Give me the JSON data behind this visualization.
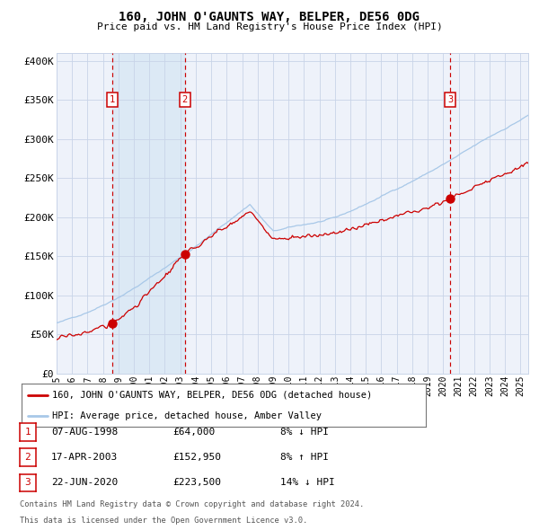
{
  "title": "160, JOHN O'GAUNTS WAY, BELPER, DE56 0DG",
  "subtitle": "Price paid vs. HM Land Registry's House Price Index (HPI)",
  "legend_line1": "160, JOHN O'GAUNTS WAY, BELPER, DE56 0DG (detached house)",
  "legend_line2": "HPI: Average price, detached house, Amber Valley",
  "footer1": "Contains HM Land Registry data © Crown copyright and database right 2024.",
  "footer2": "This data is licensed under the Open Government Licence v3.0.",
  "sales": [
    {
      "num": 1,
      "date": "07-AUG-1998",
      "price": 64000,
      "pct": "8%",
      "dir": "↓",
      "year": 1998.62
    },
    {
      "num": 2,
      "date": "17-APR-2003",
      "price": 152950,
      "pct": "8%",
      "dir": "↑",
      "year": 2003.29
    },
    {
      "num": 3,
      "date": "22-JUN-2020",
      "price": 223500,
      "pct": "14%",
      "dir": "↓",
      "year": 2020.47
    }
  ],
  "ylim": [
    0,
    410000
  ],
  "xlim_start": 1995.0,
  "xlim_end": 2025.5,
  "hpi_color": "#a8c8e8",
  "price_color": "#cc0000",
  "sale_dot_color": "#cc0000",
  "vline_color": "#cc0000",
  "shade_color": "#dce9f5",
  "background_color": "#eef2fa",
  "grid_color": "#c8d4e8",
  "label_box_color": "#cc0000",
  "yticks": [
    0,
    50000,
    100000,
    150000,
    200000,
    250000,
    300000,
    350000,
    400000
  ]
}
